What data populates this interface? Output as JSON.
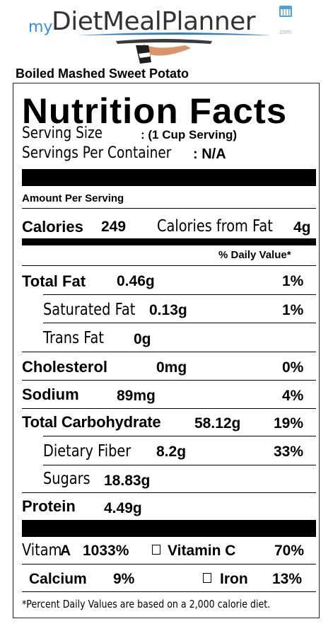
{
  "header": {
    "logo_prefix": "my",
    "logo_name": "DietMealPlanner",
    "logo_suffix": ".com",
    "food_name": "Boiled Mashed Sweet Potato"
  },
  "label": {
    "title": "Nutrition Facts",
    "serving_size_label": "Serving Size",
    "serving_size_value": ": (1 Cup Serving)",
    "servings_per_container_label": "Servings Per Container",
    "servings_per_container_value": ": N/A",
    "amount_per_serving": "Amount Per Serving",
    "calories_label": "Calories",
    "calories_value": "249",
    "calories_from_fat_label": "Calories from Fat",
    "calories_from_fat_value": "4g",
    "daily_value_header": "% Daily Value*",
    "nutrients": [
      {
        "name": "Total Fat",
        "amount": "0.46g",
        "dv": "1%"
      },
      {
        "name": "Saturated Fat",
        "amount": "0.13g",
        "dv": "1%"
      },
      {
        "name": "Trans Fat",
        "amount": "0g",
        "dv": ""
      },
      {
        "name": "Cholesterol",
        "amount": "0mg",
        "dv": "0%"
      },
      {
        "name": "Sodium",
        "amount": "89mg",
        "dv": "4%"
      },
      {
        "name": "Total Carbohydrate",
        "amount": "58.12g",
        "dv": "19%"
      },
      {
        "name": "Dietary Fiber",
        "amount": "8.2g",
        "dv": "33%"
      },
      {
        "name": "Sugars",
        "amount": "18.83g",
        "dv": ""
      },
      {
        "name": "Protein",
        "amount": "4.49g",
        "dv": ""
      }
    ],
    "vitamins": {
      "vitamin_a_label_start": "Vitam",
      "vitamin_a_label_end": "A",
      "vitamin_a_value": "1033%",
      "vitamin_c_label": "Vitamin C",
      "vitamin_c_value": "70%",
      "calcium_label": "Calcium",
      "calcium_value": "9%",
      "iron_label": "Iron",
      "iron_value": "13%"
    },
    "footnote": "*Percent Daily Values are based on a 2,000 calorie diet."
  }
}
